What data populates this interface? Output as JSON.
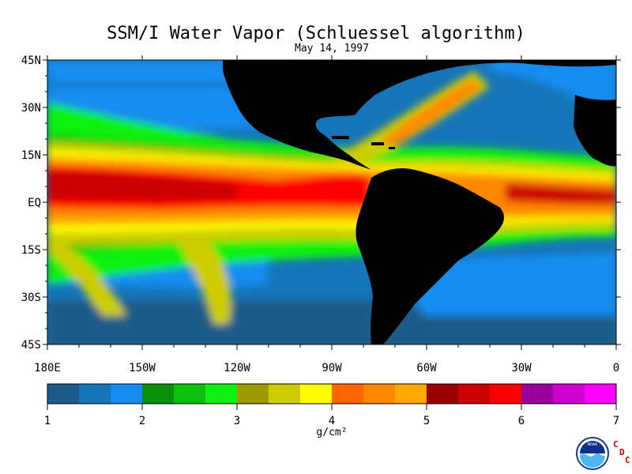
{
  "title": "SSM/I Water Vapor (Schluessel algorithm)",
  "date": "May 14, 1997",
  "lat_labels": [
    "45N",
    "30N",
    "15N",
    "EQ",
    "15S",
    "30S",
    "45S"
  ],
  "lon_labels": [
    "180E",
    "150W",
    "120W",
    "90W",
    "60W",
    "30W",
    "0"
  ],
  "colorbar": {
    "colors": [
      "#1f5b8a",
      "#1675b8",
      "#158cf0",
      "#0a8f0a",
      "#0cc10c",
      "#10f010",
      "#9c9c00",
      "#cccc00",
      "#ffff00",
      "#ff6600",
      "#ff8800",
      "#ffa800",
      "#990000",
      "#cc0000",
      "#ff0000",
      "#9a0099",
      "#cc00cc",
      "#ff00ff"
    ],
    "tick_labels": [
      "1",
      "2",
      "3",
      "4",
      "5",
      "6",
      "7"
    ],
    "units": "g/cm²"
  },
  "logo": {
    "text": "NOAA",
    "letters": [
      "C",
      "D",
      "C"
    ]
  }
}
